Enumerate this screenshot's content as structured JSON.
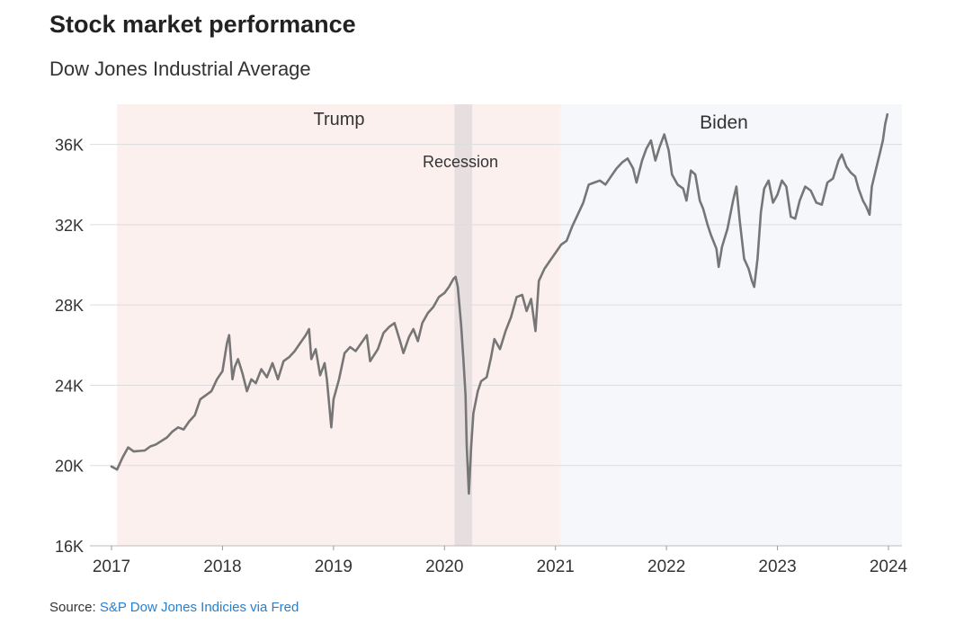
{
  "header": {
    "title": "Stock market performance",
    "subtitle": "Dow Jones Industrial Average"
  },
  "source": {
    "label": "Source:",
    "link_text": "S&P Dow Jones Indicies via Fred"
  },
  "colors": {
    "trump_band": "#fcf0ef",
    "biden_band": "#f6f7fb",
    "recession_band": "#e6dedf",
    "line": "#767676",
    "grid": "#dddddd",
    "link": "#2a7fc9"
  },
  "chart_data": {
    "type": "line",
    "title": "Dow Jones Industrial Average",
    "xlabel": "",
    "ylabel": "",
    "xlim": [
      2017.0,
      2024.0
    ],
    "ylim": [
      16000,
      38000
    ],
    "x_ticks": [
      2017,
      2018,
      2019,
      2020,
      2021,
      2022,
      2023,
      2024
    ],
    "x_tick_labels": [
      "2017",
      "2018",
      "2019",
      "2020",
      "2021",
      "2022",
      "2023",
      "2024"
    ],
    "y_ticks": [
      16000,
      20000,
      24000,
      28000,
      32000,
      36000
    ],
    "y_tick_labels": [
      "16K",
      "20K",
      "24K",
      "28K",
      "32K",
      "36K"
    ],
    "grid": true,
    "shaded_regions": [
      {
        "label": "Trump",
        "start": 2017.05,
        "end": 2021.05,
        "kind": "term"
      },
      {
        "label": "Biden",
        "start": 2021.05,
        "end": 2024.0,
        "kind": "term"
      },
      {
        "label": "Recession",
        "start": 2020.09,
        "end": 2020.25,
        "kind": "recession"
      }
    ],
    "series": [
      {
        "name": "Dow Jones Industrial Average",
        "points": [
          [
            2017.0,
            19950
          ],
          [
            2017.05,
            19800
          ],
          [
            2017.1,
            20400
          ],
          [
            2017.15,
            20900
          ],
          [
            2017.2,
            20700
          ],
          [
            2017.3,
            20750
          ],
          [
            2017.35,
            20950
          ],
          [
            2017.4,
            21050
          ],
          [
            2017.5,
            21400
          ],
          [
            2017.55,
            21700
          ],
          [
            2017.6,
            21900
          ],
          [
            2017.65,
            21800
          ],
          [
            2017.7,
            22200
          ],
          [
            2017.75,
            22500
          ],
          [
            2017.8,
            23300
          ],
          [
            2017.85,
            23500
          ],
          [
            2017.9,
            23700
          ],
          [
            2017.95,
            24300
          ],
          [
            2018.0,
            24700
          ],
          [
            2018.04,
            26100
          ],
          [
            2018.06,
            26500
          ],
          [
            2018.09,
            24300
          ],
          [
            2018.11,
            24900
          ],
          [
            2018.14,
            25300
          ],
          [
            2018.18,
            24600
          ],
          [
            2018.22,
            23700
          ],
          [
            2018.26,
            24300
          ],
          [
            2018.3,
            24100
          ],
          [
            2018.35,
            24800
          ],
          [
            2018.4,
            24400
          ],
          [
            2018.45,
            25100
          ],
          [
            2018.5,
            24300
          ],
          [
            2018.55,
            25200
          ],
          [
            2018.6,
            25400
          ],
          [
            2018.65,
            25700
          ],
          [
            2018.7,
            26100
          ],
          [
            2018.75,
            26500
          ],
          [
            2018.78,
            26800
          ],
          [
            2018.8,
            25300
          ],
          [
            2018.84,
            25800
          ],
          [
            2018.88,
            24500
          ],
          [
            2018.92,
            25100
          ],
          [
            2018.94,
            24300
          ],
          [
            2018.98,
            21900
          ],
          [
            2019.0,
            23300
          ],
          [
            2019.05,
            24300
          ],
          [
            2019.1,
            25600
          ],
          [
            2019.15,
            25900
          ],
          [
            2019.2,
            25700
          ],
          [
            2019.25,
            26100
          ],
          [
            2019.3,
            26500
          ],
          [
            2019.33,
            25200
          ],
          [
            2019.4,
            25800
          ],
          [
            2019.45,
            26600
          ],
          [
            2019.5,
            26900
          ],
          [
            2019.55,
            27100
          ],
          [
            2019.6,
            26200
          ],
          [
            2019.63,
            25600
          ],
          [
            2019.68,
            26400
          ],
          [
            2019.72,
            26800
          ],
          [
            2019.76,
            26200
          ],
          [
            2019.8,
            27100
          ],
          [
            2019.85,
            27600
          ],
          [
            2019.9,
            27900
          ],
          [
            2019.95,
            28400
          ],
          [
            2020.0,
            28600
          ],
          [
            2020.04,
            28900
          ],
          [
            2020.08,
            29300
          ],
          [
            2020.1,
            29400
          ],
          [
            2020.12,
            28900
          ],
          [
            2020.15,
            27000
          ],
          [
            2020.17,
            25300
          ],
          [
            2020.19,
            23500
          ],
          [
            2020.2,
            21000
          ],
          [
            2020.22,
            18600
          ],
          [
            2020.24,
            20900
          ],
          [
            2020.26,
            22600
          ],
          [
            2020.3,
            23700
          ],
          [
            2020.33,
            24200
          ],
          [
            2020.38,
            24400
          ],
          [
            2020.42,
            25400
          ],
          [
            2020.45,
            26300
          ],
          [
            2020.5,
            25800
          ],
          [
            2020.55,
            26700
          ],
          [
            2020.6,
            27400
          ],
          [
            2020.65,
            28400
          ],
          [
            2020.7,
            28500
          ],
          [
            2020.74,
            27700
          ],
          [
            2020.78,
            28300
          ],
          [
            2020.82,
            26700
          ],
          [
            2020.85,
            29200
          ],
          [
            2020.9,
            29800
          ],
          [
            2020.95,
            30200
          ],
          [
            2021.0,
            30600
          ],
          [
            2021.05,
            31000
          ],
          [
            2021.1,
            31200
          ],
          [
            2021.15,
            31900
          ],
          [
            2021.2,
            32500
          ],
          [
            2021.25,
            33100
          ],
          [
            2021.3,
            34000
          ],
          [
            2021.35,
            34100
          ],
          [
            2021.4,
            34200
          ],
          [
            2021.45,
            34000
          ],
          [
            2021.5,
            34400
          ],
          [
            2021.55,
            34800
          ],
          [
            2021.6,
            35100
          ],
          [
            2021.65,
            35300
          ],
          [
            2021.7,
            34800
          ],
          [
            2021.73,
            34100
          ],
          [
            2021.78,
            35200
          ],
          [
            2021.82,
            35800
          ],
          [
            2021.86,
            36200
          ],
          [
            2021.9,
            35200
          ],
          [
            2021.94,
            35900
          ],
          [
            2021.98,
            36500
          ],
          [
            2022.02,
            35700
          ],
          [
            2022.05,
            34500
          ],
          [
            2022.1,
            34000
          ],
          [
            2022.15,
            33800
          ],
          [
            2022.18,
            33200
          ],
          [
            2022.22,
            34700
          ],
          [
            2022.26,
            34500
          ],
          [
            2022.3,
            33200
          ],
          [
            2022.33,
            32800
          ],
          [
            2022.37,
            32000
          ],
          [
            2022.4,
            31500
          ],
          [
            2022.45,
            30800
          ],
          [
            2022.47,
            29900
          ],
          [
            2022.5,
            30900
          ],
          [
            2022.55,
            31800
          ],
          [
            2022.6,
            33200
          ],
          [
            2022.63,
            33900
          ],
          [
            2022.66,
            32200
          ],
          [
            2022.7,
            30300
          ],
          [
            2022.74,
            29800
          ],
          [
            2022.77,
            29200
          ],
          [
            2022.79,
            28900
          ],
          [
            2022.82,
            30300
          ],
          [
            2022.85,
            32600
          ],
          [
            2022.88,
            33800
          ],
          [
            2022.92,
            34200
          ],
          [
            2022.96,
            33100
          ],
          [
            2023.0,
            33500
          ],
          [
            2023.04,
            34200
          ],
          [
            2023.08,
            33900
          ],
          [
            2023.12,
            32400
          ],
          [
            2023.16,
            32300
          ],
          [
            2023.2,
            33200
          ],
          [
            2023.25,
            33900
          ],
          [
            2023.3,
            33700
          ],
          [
            2023.35,
            33100
          ],
          [
            2023.4,
            33000
          ],
          [
            2023.45,
            34100
          ],
          [
            2023.5,
            34300
          ],
          [
            2023.55,
            35200
          ],
          [
            2023.58,
            35500
          ],
          [
            2023.62,
            34900
          ],
          [
            2023.66,
            34600
          ],
          [
            2023.7,
            34400
          ],
          [
            2023.73,
            33800
          ],
          [
            2023.77,
            33200
          ],
          [
            2023.8,
            32900
          ],
          [
            2023.83,
            32500
          ],
          [
            2023.85,
            33900
          ],
          [
            2023.88,
            34600
          ],
          [
            2023.92,
            35500
          ],
          [
            2023.95,
            36200
          ],
          [
            2023.97,
            37000
          ],
          [
            2023.99,
            37500
          ]
        ]
      }
    ]
  }
}
